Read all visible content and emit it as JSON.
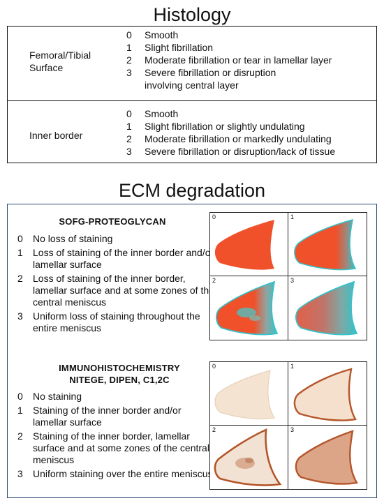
{
  "histology": {
    "title": "Histology",
    "rows": [
      {
        "label_lines": [
          "Femoral/Tibial",
          "Surface"
        ],
        "grades": [
          {
            "n": "0",
            "text": "Smooth"
          },
          {
            "n": "1",
            "text": "Slight fibrillation"
          },
          {
            "n": "2",
            "text": "Moderate fibrillation or tear in  lamellar layer"
          },
          {
            "n": "3",
            "text": "Severe fibrillation or disruption"
          },
          {
            "n": "",
            "text": "involving central layer"
          }
        ]
      },
      {
        "label_lines": [
          "Inner border"
        ],
        "grades": [
          {
            "n": "0",
            "text": "Smooth"
          },
          {
            "n": "1",
            "text": "Slight fibrillation or slightly undulating"
          },
          {
            "n": "2",
            "text": "Moderate fibrillation or markedly undulating"
          },
          {
            "n": "3",
            "text": "Severe fibrillation or disruption/lack of tissue"
          }
        ]
      }
    ]
  },
  "ecm": {
    "title": "ECM degradation",
    "sofg": {
      "heading_lines": [
        "SOFG-PROTEOGLYCAN"
      ],
      "items": [
        {
          "n": "0",
          "text": "No loss of staining"
        },
        {
          "n": "1",
          "text": "Loss of staining of the inner border and/or lamellar surface"
        },
        {
          "n": "2",
          "text": "Loss of staining of the inner border, lamellar surface and at some zones of the central meniscus"
        },
        {
          "n": "3",
          "text": "Uniform loss of staining throughout the entire meniscus"
        }
      ],
      "panel_labels": [
        "0",
        "1",
        "2",
        "3"
      ]
    },
    "ihc": {
      "heading_lines": [
        "IMMUNOHISTOCHEMISTRY",
        "NITEGE, DIPEN, C1,2C"
      ],
      "items": [
        {
          "n": "0",
          "text": "No staining"
        },
        {
          "n": "1",
          "text": "Staining of the inner border and/or lamellar surface"
        },
        {
          "n": "2",
          "text": "Staining of the inner border, lamellar surface and at some zones of the central meniscus"
        },
        {
          "n": "3",
          "text": "Uniform staining over the entire meniscus"
        }
      ],
      "panel_labels": [
        "0",
        "1",
        "2",
        "3"
      ]
    }
  },
  "colors": {
    "safranin_red": "#f0502a",
    "fast_green": "#35c2c9",
    "ihc_pale": "#f3e3d0",
    "ihc_brown": "#b5552a",
    "frame_blue": "#2a4a73"
  }
}
